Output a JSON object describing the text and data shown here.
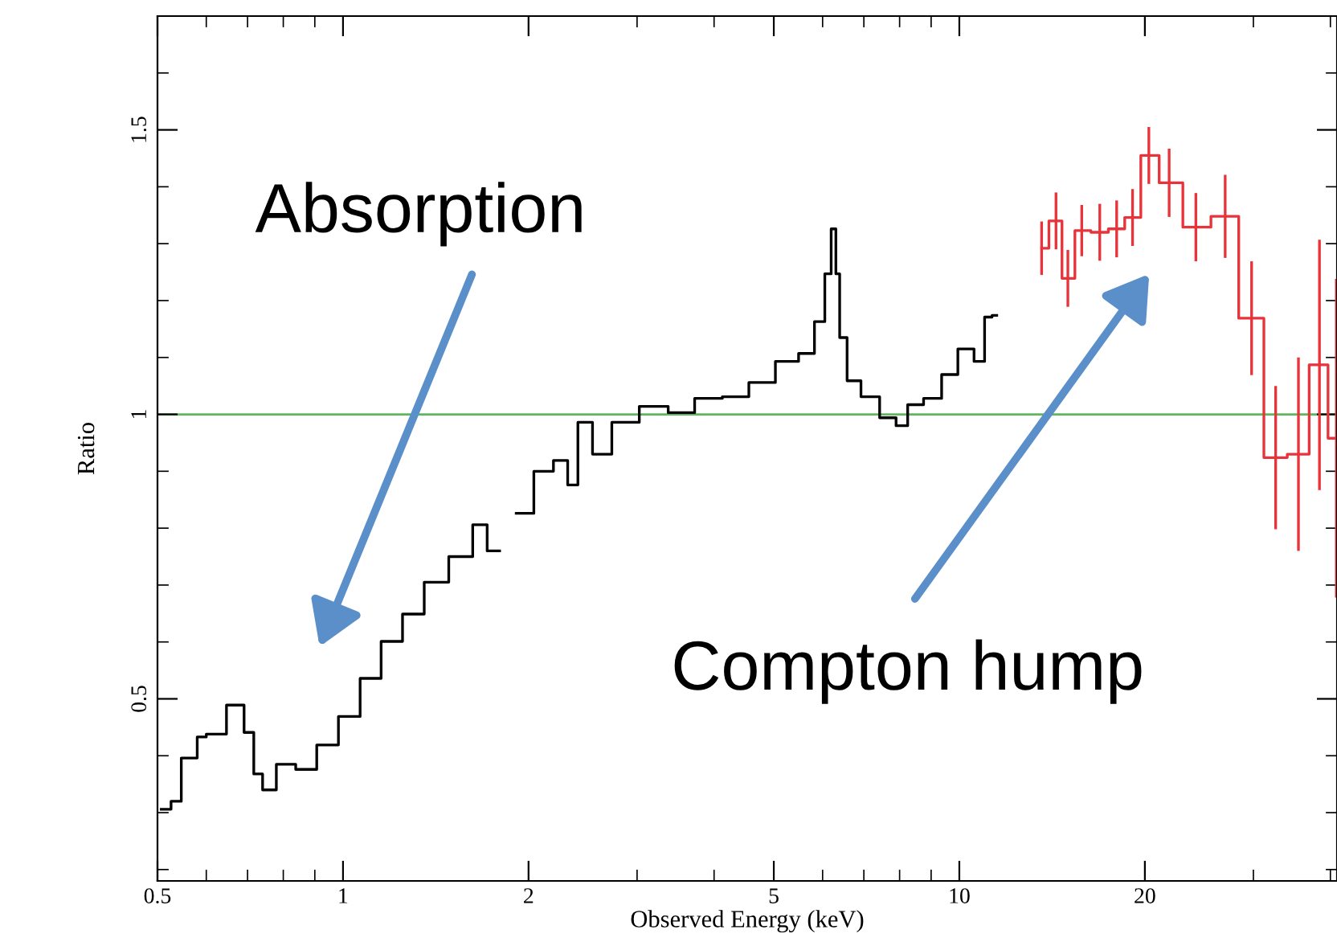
{
  "chart_data": {
    "type": "step",
    "xlabel": "Observed Energy (keV)",
    "ylabel": "Ratio",
    "log": "x",
    "xlim": [
      0.5,
      41
    ],
    "ylim": [
      0.18,
      1.7
    ],
    "xticks": [
      0.5,
      {
        "value": 0.6,
        "label": null
      },
      {
        "value": 0.7,
        "label": null
      },
      {
        "value": 0.8,
        "label": null
      },
      {
        "value": 0.9,
        "label": null
      },
      1,
      2,
      {
        "value": 3,
        "label": null
      },
      {
        "value": 4,
        "label": null
      },
      5,
      {
        "value": 6,
        "label": null
      },
      {
        "value": 7,
        "label": null
      },
      {
        "value": 8,
        "label": null
      },
      {
        "value": 9,
        "label": null
      },
      10,
      20,
      {
        "value": 30,
        "label": null
      },
      {
        "value": 40,
        "label": null
      }
    ],
    "yticks": [
      {
        "value": 0.2,
        "label": null
      },
      {
        "value": 0.3,
        "label": null
      },
      {
        "value": 0.4,
        "label": null
      },
      0.5,
      {
        "value": 0.6,
        "label": null
      },
      {
        "value": 0.7,
        "label": null
      },
      {
        "value": 0.8,
        "label": null
      },
      {
        "value": 0.9,
        "label": null
      },
      1,
      {
        "value": 1.1,
        "label": null
      },
      {
        "value": 1.2,
        "label": null
      },
      {
        "value": 1.3,
        "label": null
      },
      {
        "value": 1.4,
        "label": null
      },
      1.5,
      {
        "value": 1.6,
        "label": null
      }
    ],
    "grid": false,
    "marker": "none",
    "line_style": "solid",
    "series": [
      {
        "color": "#000000",
        "x": [
          0.507,
          0.545,
          0.548,
          0.578,
          0.582,
          0.618,
          0.676,
          0.706,
          0.727,
          0.754,
          0.805,
          0.871,
          0.942,
          1.024,
          1.108,
          1.198,
          1.3,
          1.409,
          1.56,
          1.687,
          1.74,
          1.85,
          1.97,
          2.11,
          2.28,
          2.35,
          2.46,
          2.62,
          2.84,
          3.21,
          3.53,
          3.91,
          4.34,
          4.77,
          5.29,
          5.68,
          5.96,
          6.14,
          6.25,
          6.36,
          6.43,
          6.72,
          7.13,
          7.72,
          8.07,
          8.42,
          9.08,
          9.64,
          10.25,
          10.88,
          11.1,
          11.5
        ],
        "values": [
          0.306,
          0.32,
          0.396,
          0.396,
          0.433,
          0.438,
          0.489,
          0.441,
          0.368,
          0.34,
          0.385,
          0.376,
          0.419,
          0.469,
          0.536,
          0.601,
          0.649,
          0.705,
          0.75,
          0.806,
          0.76,
          null,
          0.826,
          0.9,
          0.919,
          0.876,
          0.986,
          0.93,
          0.986,
          1.014,
          1.003,
          1.028,
          1.031,
          1.056,
          1.093,
          1.107,
          1.163,
          1.247,
          1.326,
          1.247,
          1.135,
          1.059,
          1.031,
          0.994,
          0.98,
          1.017,
          1.028,
          1.07,
          1.115,
          1.093,
          1.171,
          1.174
        ]
      },
      {
        "color": "#e8333a",
        "x": [
          13.6,
          14.35,
          15.0,
          15.8,
          16.9,
          18.0,
          19.1,
          20.3,
          21.9,
          24.2,
          27.0,
          29.8,
          32.6,
          35.5,
          38.4,
          40.9
        ],
        "values": [
          1.292,
          1.34,
          1.239,
          1.323,
          1.32,
          1.326,
          1.346,
          1.455,
          1.407,
          1.329,
          1.348,
          1.169,
          0.924,
          0.93,
          1.087,
          0.958
        ],
        "errors": [
          0.047,
          0.05,
          0.05,
          0.045,
          0.05,
          0.05,
          0.05,
          0.05,
          0.06,
          0.06,
          0.073,
          0.1,
          0.126,
          0.17,
          0.22,
          0.28
        ]
      }
    ],
    "ref_lines": [
      {
        "axis": "y",
        "value": 1,
        "color": "#5cb85c",
        "line_style": "solid"
      }
    ],
    "annotations": [
      "Absorption",
      "Compton hump"
    ]
  }
}
